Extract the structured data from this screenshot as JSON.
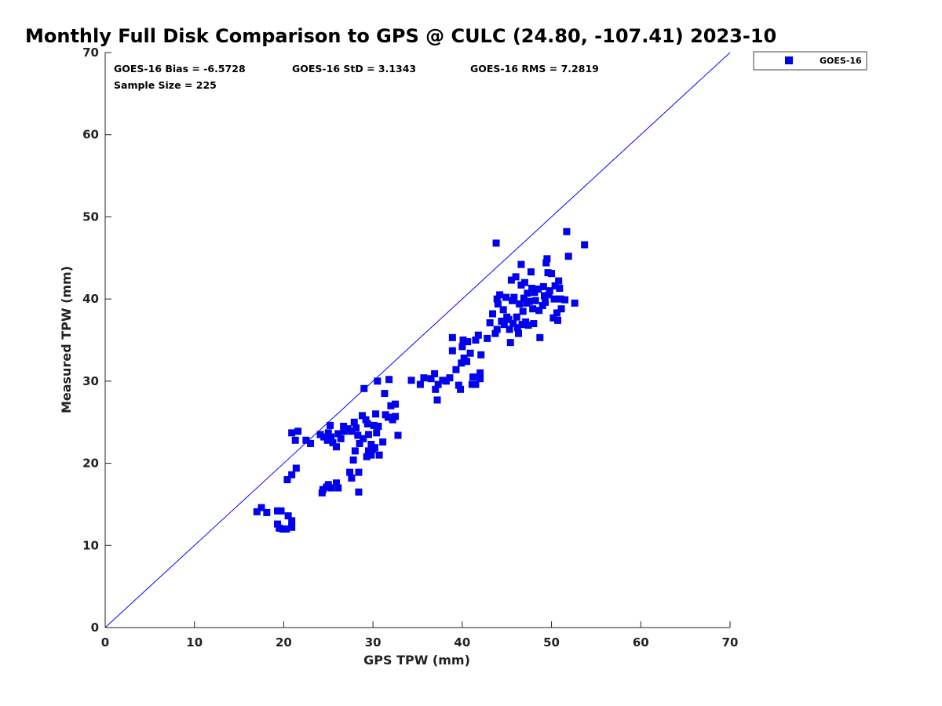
{
  "chart_data": {
    "type": "scatter",
    "title": "Monthly Full Disk Comparison to GPS @ CULC (24.80, -107.41) 2023-10",
    "xlabel": "GPS TPW (mm)",
    "ylabel": "Measured TPW (mm)",
    "xlim": [
      0,
      70
    ],
    "ylim": [
      0,
      70
    ],
    "xticks": [
      "0",
      "10",
      "20",
      "30",
      "40",
      "50",
      "60",
      "70"
    ],
    "yticks": [
      "0",
      "10",
      "20",
      "30",
      "40",
      "50",
      "60",
      "70"
    ],
    "grid": false,
    "legend_position": "top-right",
    "reference_line": {
      "from": [
        0,
        0
      ],
      "to": [
        70,
        70
      ],
      "color": "#0000ff"
    },
    "stats": {
      "bias": "GOES-16 Bias = -6.5728",
      "std": "GOES-16 StD = 3.1343",
      "rms": "GOES-16 RMS = 7.2819",
      "sample": "Sample Size = 225"
    },
    "series": [
      {
        "name": "GOES-16",
        "color": "#0000ee",
        "marker": "square",
        "points": [
          [
            17.0,
            14.1
          ],
          [
            17.5,
            14.6
          ],
          [
            18.1,
            14.0
          ],
          [
            19.3,
            14.2
          ],
          [
            19.7,
            14.2
          ],
          [
            19.3,
            12.6
          ],
          [
            19.5,
            12.1
          ],
          [
            19.9,
            12.0
          ],
          [
            20.3,
            12.0
          ],
          [
            20.5,
            13.6
          ],
          [
            20.9,
            13.0
          ],
          [
            20.9,
            12.2
          ],
          [
            20.4,
            18.0
          ],
          [
            20.9,
            18.6
          ],
          [
            21.4,
            19.4
          ],
          [
            20.9,
            23.7
          ],
          [
            21.3,
            22.8
          ],
          [
            21.6,
            23.9
          ],
          [
            22.5,
            22.8
          ],
          [
            23.0,
            22.4
          ],
          [
            24.1,
            23.5
          ],
          [
            24.5,
            23.2
          ],
          [
            24.9,
            22.8
          ],
          [
            25.2,
            24.6
          ],
          [
            25.0,
            23.7
          ],
          [
            25.3,
            23.2
          ],
          [
            25.5,
            22.5
          ],
          [
            25.9,
            22.0
          ],
          [
            26.1,
            23.6
          ],
          [
            26.4,
            23.0
          ],
          [
            26.7,
            24.5
          ],
          [
            26.8,
            23.9
          ],
          [
            27.2,
            24.2
          ],
          [
            27.6,
            23.9
          ],
          [
            27.9,
            25.0
          ],
          [
            28.1,
            24.3
          ],
          [
            28.3,
            23.4
          ],
          [
            28.5,
            22.4
          ],
          [
            28.8,
            25.8
          ],
          [
            28.9,
            23.0
          ],
          [
            29.2,
            25.3
          ],
          [
            29.4,
            24.8
          ],
          [
            29.0,
            29.1
          ],
          [
            29.5,
            23.5
          ],
          [
            29.8,
            21.0
          ],
          [
            30.1,
            24.6
          ],
          [
            30.2,
            21.9
          ],
          [
            30.3,
            26.0
          ],
          [
            30.4,
            23.7
          ],
          [
            30.5,
            30.0
          ],
          [
            30.6,
            24.5
          ],
          [
            30.7,
            21.0
          ],
          [
            31.1,
            22.6
          ],
          [
            31.3,
            28.5
          ],
          [
            31.4,
            25.9
          ],
          [
            31.7,
            25.6
          ],
          [
            31.8,
            30.2
          ],
          [
            32.0,
            27.0
          ],
          [
            32.2,
            25.3
          ],
          [
            32.5,
            27.2
          ],
          [
            32.5,
            25.7
          ],
          [
            32.8,
            23.4
          ],
          [
            24.3,
            16.4
          ],
          [
            24.4,
            16.8
          ],
          [
            24.8,
            17.1
          ],
          [
            25.0,
            17.4
          ],
          [
            25.3,
            17.0
          ],
          [
            25.9,
            17.6
          ],
          [
            26.1,
            17.0
          ],
          [
            27.4,
            18.9
          ],
          [
            27.6,
            18.2
          ],
          [
            27.8,
            20.4
          ],
          [
            28.0,
            21.5
          ],
          [
            28.4,
            18.9
          ],
          [
            28.4,
            16.5
          ],
          [
            29.3,
            20.8
          ],
          [
            29.5,
            21.5
          ],
          [
            29.8,
            22.3
          ],
          [
            30.0,
            21.7
          ],
          [
            34.3,
            30.1
          ],
          [
            35.3,
            29.6
          ],
          [
            35.7,
            30.4
          ],
          [
            36.5,
            30.3
          ],
          [
            36.9,
            30.9
          ],
          [
            37.0,
            29.0
          ],
          [
            37.2,
            27.7
          ],
          [
            37.3,
            29.6
          ],
          [
            37.8,
            30.1
          ],
          [
            38.2,
            30.0
          ],
          [
            38.6,
            30.4
          ],
          [
            38.9,
            33.7
          ],
          [
            38.9,
            35.3
          ],
          [
            39.3,
            31.4
          ],
          [
            39.6,
            29.5
          ],
          [
            39.8,
            29.0
          ],
          [
            39.9,
            32.2
          ],
          [
            40.0,
            34.2
          ],
          [
            40.1,
            35.0
          ],
          [
            40.2,
            32.8
          ],
          [
            40.5,
            32.4
          ],
          [
            40.6,
            34.8
          ],
          [
            40.9,
            33.4
          ],
          [
            41.1,
            29.6
          ],
          [
            41.2,
            30.5
          ],
          [
            41.5,
            29.6
          ],
          [
            41.5,
            35.0
          ],
          [
            41.8,
            35.6
          ],
          [
            42.0,
            30.3
          ],
          [
            42.0,
            31.0
          ],
          [
            42.1,
            33.2
          ],
          [
            42.8,
            35.2
          ],
          [
            43.1,
            37.1
          ],
          [
            43.4,
            38.2
          ],
          [
            43.7,
            35.8
          ],
          [
            43.8,
            46.8
          ],
          [
            43.9,
            36.3
          ],
          [
            43.9,
            40.0
          ],
          [
            44.0,
            39.4
          ],
          [
            44.2,
            40.5
          ],
          [
            44.4,
            37.3
          ],
          [
            44.6,
            38.7
          ],
          [
            44.7,
            36.9
          ],
          [
            44.9,
            40.2
          ],
          [
            45.0,
            37.8
          ],
          [
            45.2,
            37.5
          ],
          [
            45.3,
            36.3
          ],
          [
            45.4,
            34.7
          ],
          [
            45.5,
            42.3
          ],
          [
            45.6,
            39.8
          ],
          [
            45.7,
            37.0
          ],
          [
            45.8,
            40.2
          ],
          [
            46.0,
            42.7
          ],
          [
            46.1,
            37.8
          ],
          [
            46.2,
            36.5
          ],
          [
            46.3,
            35.8
          ],
          [
            46.4,
            39.4
          ],
          [
            46.6,
            44.2
          ],
          [
            46.6,
            41.7
          ],
          [
            46.7,
            36.9
          ],
          [
            46.8,
            38.5
          ],
          [
            46.9,
            40.1
          ],
          [
            47.0,
            42.0
          ],
          [
            47.1,
            37.2
          ],
          [
            47.2,
            39.5
          ],
          [
            47.3,
            40.7
          ],
          [
            47.4,
            36.8
          ],
          [
            47.5,
            39.7
          ],
          [
            47.7,
            43.3
          ],
          [
            47.8,
            41.3
          ],
          [
            47.9,
            38.8
          ],
          [
            48.0,
            37.0
          ],
          [
            48.1,
            40.8
          ],
          [
            48.2,
            39.8
          ],
          [
            48.5,
            41.2
          ],
          [
            48.6,
            38.6
          ],
          [
            48.7,
            35.3
          ],
          [
            49.0,
            39.2
          ],
          [
            49.1,
            41.5
          ],
          [
            49.2,
            40.4
          ],
          [
            49.3,
            39.6
          ],
          [
            49.4,
            44.4
          ],
          [
            49.5,
            44.9
          ],
          [
            49.6,
            43.2
          ],
          [
            49.7,
            40.5
          ],
          [
            49.8,
            41.0
          ],
          [
            50.0,
            43.1
          ],
          [
            50.2,
            37.7
          ],
          [
            50.3,
            40.0
          ],
          [
            50.4,
            41.6
          ],
          [
            50.6,
            38.3
          ],
          [
            50.7,
            37.4
          ],
          [
            50.8,
            42.2
          ],
          [
            50.9,
            41.3
          ],
          [
            51.0,
            40.0
          ],
          [
            51.1,
            38.8
          ],
          [
            51.5,
            39.9
          ],
          [
            51.7,
            48.2
          ],
          [
            51.9,
            45.2
          ],
          [
            52.6,
            39.5
          ],
          [
            53.7,
            46.6
          ]
        ]
      }
    ]
  }
}
